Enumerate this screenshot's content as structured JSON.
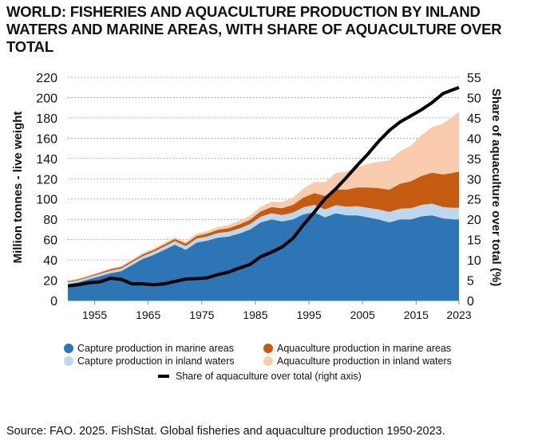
{
  "title": "WORLD: FISHERIES AND AQUACULTURE PRODUCTION BY INLAND WATERS AND MARINE AREAS, WITH SHARE OF AQUACULTURE OVER TOTAL",
  "source": "Source: FAO. 2025. FishStat. Global fisheries and aquaculture production 1950-2023.",
  "chart_data": {
    "type": "area",
    "stacked": true,
    "title": "WORLD: FISHERIES AND AQUACULTURE PRODUCTION BY INLAND WATERS AND MARINE AREAS, WITH SHARE OF AQUACULTURE OVER TOTAL",
    "ylabel": "Million tonnes - live weight",
    "y2label": "Share of aquaculture over total (%)",
    "xlim": [
      1950,
      2023
    ],
    "ylim": [
      0,
      220
    ],
    "y2lim": [
      0,
      55
    ],
    "xticks": [
      "1955",
      "1965",
      "1975",
      "1985",
      "1995",
      "2005",
      "2015",
      "2023"
    ],
    "xtick_values": [
      1955,
      1965,
      1975,
      1985,
      1995,
      2005,
      2015,
      2023
    ],
    "yticks": [
      "0",
      "20",
      "40",
      "60",
      "80",
      "100",
      "120",
      "140",
      "160",
      "180",
      "200",
      "220"
    ],
    "y2ticks": [
      "0",
      "5",
      "10",
      "15",
      "20",
      "25",
      "30",
      "35",
      "40",
      "45",
      "50",
      "55"
    ],
    "grid": "horizontal dashed",
    "legend_position": "bottom",
    "x": [
      1950,
      1952,
      1954,
      1956,
      1958,
      1960,
      1962,
      1964,
      1966,
      1968,
      1970,
      1972,
      1974,
      1976,
      1978,
      1980,
      1982,
      1984,
      1986,
      1988,
      1990,
      1992,
      1994,
      1996,
      1998,
      2000,
      2002,
      2004,
      2006,
      2008,
      2010,
      2012,
      2014,
      2016,
      2018,
      2020,
      2022,
      2023
    ],
    "series": [
      {
        "name": "Capture production in marine areas",
        "color": "#2e75b6",
        "role": "area",
        "values": [
          16,
          18,
          21,
          24,
          27,
          29,
          35,
          41,
          45,
          50,
          55,
          50,
          57,
          59,
          62,
          63,
          66,
          70,
          77,
          80,
          78,
          80,
          85,
          87,
          82,
          86,
          84,
          84,
          82,
          80,
          77,
          80,
          80,
          83,
          84,
          81,
          80,
          80
        ]
      },
      {
        "name": "Capture production in inland waters",
        "color": "#bdd7ee",
        "role": "area",
        "values": [
          2,
          2,
          2.2,
          2.3,
          2.5,
          2.6,
          2.7,
          2.8,
          3,
          3.2,
          3.5,
          3.7,
          4,
          4.2,
          4.5,
          4.8,
          5,
          5.3,
          5.6,
          6,
          6.3,
          6.6,
          7,
          7.3,
          7.7,
          8,
          8.5,
          9,
          9.4,
          9.8,
          10.2,
          10.6,
          11,
          11.3,
          11.5,
          11.2,
          11.4,
          11.5
        ]
      },
      {
        "name": "Aquaculture production in marine areas",
        "color": "#c55a11",
        "role": "area",
        "values": [
          0.8,
          0.9,
          1,
          1.1,
          1.3,
          1.5,
          1.6,
          1.7,
          1.8,
          2,
          2.2,
          2.4,
          2.6,
          2.8,
          3.2,
          3.5,
          4,
          4.3,
          5.2,
          6,
          6.7,
          7.7,
          9.5,
          11.5,
          13.5,
          15.6,
          16.7,
          18.5,
          20,
          21,
          22,
          24.5,
          26.5,
          28.5,
          30.5,
          32,
          34.5,
          35.5
        ]
      },
      {
        "name": "Aquaculture production in inland waters",
        "color": "#f8cbad",
        "role": "area",
        "values": [
          0.6,
          0.7,
          0.8,
          0.9,
          1,
          1.1,
          1.2,
          1.3,
          1.4,
          1.6,
          1.8,
          2,
          2.2,
          2.4,
          2.8,
          3.2,
          3.6,
          4,
          4.6,
          5.2,
          6,
          7,
          9,
          11,
          13.5,
          16,
          18,
          20,
          23,
          26,
          29,
          32,
          35,
          40,
          45,
          50,
          56,
          59
        ]
      },
      {
        "name": "Share of aquaculture over total (right axis)",
        "color": "#000000",
        "role": "line",
        "axis": "right",
        "values": [
          3.6,
          3.9,
          4.4,
          4.6,
          5.5,
          5.2,
          4.1,
          4.1,
          3.9,
          4.1,
          4.7,
          5.3,
          5.4,
          5.6,
          6.4,
          7.0,
          8.0,
          8.9,
          10.8,
          11.9,
          13.2,
          15.3,
          18.7,
          21.8,
          25.1,
          27.5,
          30.3,
          33.3,
          36.1,
          39.2,
          41.9,
          44.0,
          45.5,
          47.0,
          48.8,
          51.0,
          52.0,
          52.5
        ]
      }
    ]
  },
  "legend": [
    {
      "label": "Capture production in marine areas",
      "color": "#2e75b6",
      "marker": "dot"
    },
    {
      "label": "Aquaculture production in marine areas",
      "color": "#c55a11",
      "marker": "dot"
    },
    {
      "label": "Capture production in inland waters",
      "color": "#bdd7ee",
      "marker": "dot"
    },
    {
      "label": "Aquaculture production in inland waters",
      "color": "#f8cbad",
      "marker": "dot"
    },
    {
      "label": "Share of aquaculture over total (right axis)",
      "color": "#000000",
      "marker": "line"
    }
  ]
}
